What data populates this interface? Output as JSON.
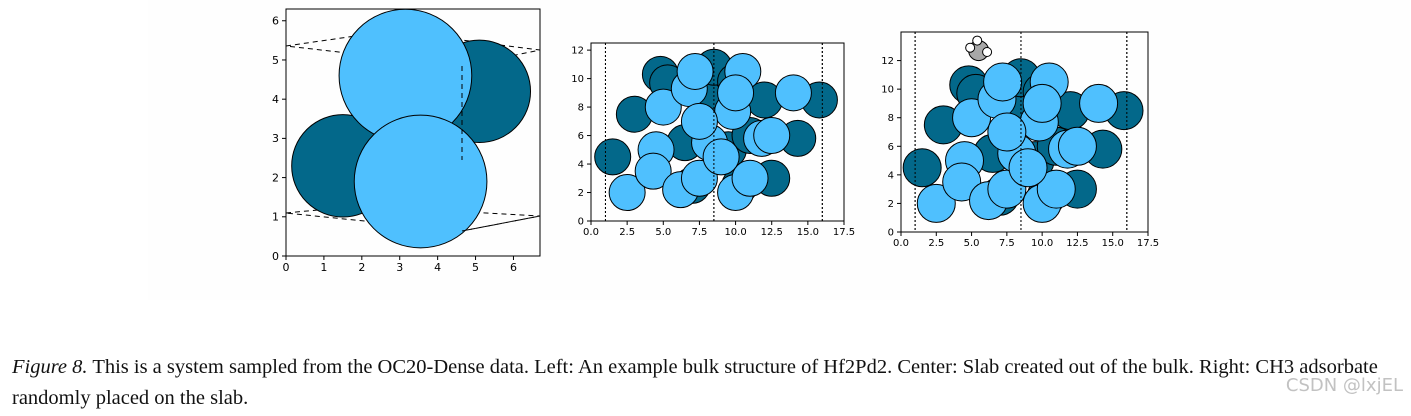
{
  "colors": {
    "dark_atom": "#03688a",
    "light_atom": "#4fc0fe",
    "adsorbate_carbon": "#a8a8a8",
    "adsorbate_hydrogen": "#ffffff",
    "outline": "#000000"
  },
  "chart_data": [
    {
      "type": "scatter",
      "title": "",
      "xlabel": "",
      "ylabel": "",
      "xlim": [
        0,
        6.7
      ],
      "ylim": [
        0,
        6.3
      ],
      "xticks": [
        "0",
        "1",
        "2",
        "3",
        "4",
        "5",
        "6"
      ],
      "yticks": [
        "0",
        "1",
        "2",
        "3",
        "4",
        "5",
        "6"
      ],
      "series": [
        {
          "color": "dark",
          "points": [
            [
              1.5,
              2.3
            ],
            [
              5.1,
              4.2
            ]
          ],
          "radius": 1.35
        },
        {
          "color": "light",
          "points": [
            [
              3.15,
              4.6
            ],
            [
              3.55,
              1.9
            ]
          ],
          "radius": 1.75
        }
      ]
    },
    {
      "type": "scatter",
      "title": "",
      "xlabel": "",
      "ylabel": "",
      "xlim": [
        0,
        17.5
      ],
      "ylim": [
        0,
        12.5
      ],
      "xticks": [
        "0.0",
        "2.5",
        "5.0",
        "7.5",
        "10.0",
        "12.5",
        "15.0",
        "17.5"
      ],
      "yticks": [
        "0",
        "2",
        "4",
        "6",
        "8",
        "10",
        "12"
      ],
      "vlines": [
        1.0,
        8.5,
        16.0
      ],
      "series": [
        {
          "color": "dark",
          "points": [
            [
              1.5,
              4.5
            ],
            [
              3.0,
              7.5
            ],
            [
              4.8,
              10.3
            ],
            [
              5.3,
              9.7
            ],
            [
              6.5,
              5.5
            ],
            [
              8.0,
              8.5
            ],
            [
              8.5,
              10.8
            ],
            [
              9.5,
              5.0
            ],
            [
              10.3,
              2.5
            ],
            [
              11.0,
              6.0
            ],
            [
              12.0,
              8.5
            ],
            [
              12.5,
              3.0
            ],
            [
              14.3,
              5.8
            ],
            [
              15.8,
              8.5
            ],
            [
              10.0,
              9.8
            ],
            [
              7.0,
              2.5
            ]
          ]
        },
        {
          "color": "light",
          "points": [
            [
              2.5,
              2.0
            ],
            [
              4.5,
              5.0
            ],
            [
              4.3,
              3.5
            ],
            [
              5.0,
              8.0
            ],
            [
              6.2,
              2.2
            ],
            [
              6.8,
              9.3
            ],
            [
              7.2,
              10.5
            ],
            [
              7.5,
              3.0
            ],
            [
              8.2,
              5.5
            ],
            [
              9.8,
              7.7
            ],
            [
              10.0,
              2.0
            ],
            [
              10.5,
              10.5
            ],
            [
              11.0,
              3.0
            ],
            [
              11.8,
              5.8
            ],
            [
              12.5,
              6.0
            ],
            [
              14.0,
              9.0
            ],
            [
              10.0,
              9.0
            ],
            [
              9.0,
              4.5
            ],
            [
              7.5,
              7.0
            ]
          ]
        }
      ]
    },
    {
      "type": "scatter",
      "title": "",
      "xlabel": "",
      "ylabel": "",
      "xlim": [
        0,
        17.5
      ],
      "ylim": [
        0,
        14
      ],
      "xticks": [
        "0.0",
        "2.5",
        "5.0",
        "7.5",
        "10.0",
        "12.5",
        "15.0",
        "17.5"
      ],
      "yticks": [
        "0",
        "2",
        "4",
        "6",
        "8",
        "10",
        "12"
      ],
      "vlines": [
        1.0,
        8.5,
        16.0
      ],
      "series": [
        {
          "color": "dark",
          "points": [
            [
              1.5,
              4.5
            ],
            [
              3.0,
              7.5
            ],
            [
              4.8,
              10.3
            ],
            [
              5.3,
              9.7
            ],
            [
              6.5,
              5.5
            ],
            [
              8.0,
              8.5
            ],
            [
              8.5,
              10.8
            ],
            [
              9.5,
              5.0
            ],
            [
              10.3,
              2.5
            ],
            [
              11.0,
              6.0
            ],
            [
              12.0,
              8.5
            ],
            [
              12.5,
              3.0
            ],
            [
              14.3,
              5.8
            ],
            [
              15.8,
              8.5
            ],
            [
              10.0,
              9.8
            ],
            [
              7.0,
              2.5
            ]
          ]
        },
        {
          "color": "light",
          "points": [
            [
              2.5,
              2.0
            ],
            [
              4.5,
              5.0
            ],
            [
              4.3,
              3.5
            ],
            [
              5.0,
              8.0
            ],
            [
              6.2,
              2.2
            ],
            [
              6.8,
              9.3
            ],
            [
              7.2,
              10.5
            ],
            [
              7.5,
              3.0
            ],
            [
              8.2,
              5.5
            ],
            [
              9.8,
              7.7
            ],
            [
              10.0,
              2.0
            ],
            [
              10.5,
              10.5
            ],
            [
              11.0,
              3.0
            ],
            [
              11.8,
              5.8
            ],
            [
              12.5,
              6.0
            ],
            [
              14.0,
              9.0
            ],
            [
              10.0,
              9.0
            ],
            [
              9.0,
              4.5
            ],
            [
              7.5,
              7.0
            ]
          ]
        },
        {
          "color": "adsorbate_carbon",
          "points": [
            [
              5.5,
              12.7
            ]
          ]
        },
        {
          "color": "adsorbate_hydrogen",
          "points": [
            [
              4.9,
              12.9
            ],
            [
              5.4,
              13.4
            ],
            [
              6.1,
              12.6
            ]
          ]
        }
      ]
    }
  ],
  "caption": {
    "label": "Figure 8.",
    "text": "This is a system sampled from the OC20-Dense data. Left: An example bulk structure of Hf2Pd2. Center: Slab created out of the bulk. Right: CH3 adsorbate randomly placed on the slab."
  },
  "watermark": "CSDN @lxjEL"
}
